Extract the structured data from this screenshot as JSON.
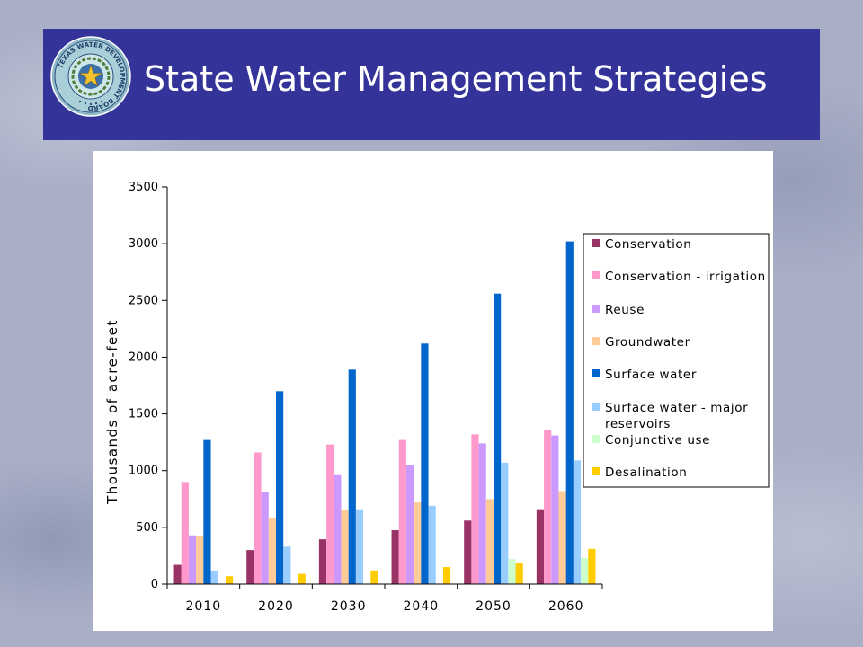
{
  "header": {
    "title": "State Water Management Strategies",
    "logo_text": "TEXAS WATER DEVELOPMENT BOARD",
    "background_color": "#333399"
  },
  "chart_data": {
    "type": "bar",
    "title": "",
    "xlabel": "",
    "ylabel": "Thousands of acre-feet",
    "ylim": [
      0,
      3500
    ],
    "yticks": [
      0,
      500,
      1000,
      1500,
      2000,
      2500,
      3000,
      3500
    ],
    "grid": false,
    "legend_position": "right",
    "categories": [
      "2010",
      "2020",
      "2030",
      "2040",
      "2050",
      "2060"
    ],
    "series": [
      {
        "name": "Conservation",
        "color": "#993366",
        "values": [
          170,
          300,
          395,
          475,
          560,
          660
        ]
      },
      {
        "name": "Conservation - irrigation",
        "color": "#ff99cc",
        "values": [
          900,
          1160,
          1230,
          1270,
          1320,
          1360
        ]
      },
      {
        "name": "Reuse",
        "color": "#cc99ff",
        "values": [
          430,
          810,
          960,
          1050,
          1240,
          1310
        ]
      },
      {
        "name": "Groundwater",
        "color": "#ffcc99",
        "values": [
          420,
          580,
          650,
          720,
          750,
          820
        ]
      },
      {
        "name": "Surface water",
        "color": "#0066cc",
        "values": [
          1270,
          1700,
          1890,
          2120,
          2560,
          3020
        ]
      },
      {
        "name": "Surface water - major reservoirs",
        "color": "#99ccff",
        "values": [
          120,
          330,
          660,
          690,
          1070,
          1090
        ]
      },
      {
        "name": "Conjunctive use",
        "color": "#ccffcc",
        "values": [
          0,
          0,
          0,
          0,
          220,
          230
        ]
      },
      {
        "name": "Desalination",
        "color": "#ffcc00",
        "values": [
          70,
          90,
          120,
          150,
          190,
          310
        ]
      }
    ]
  }
}
